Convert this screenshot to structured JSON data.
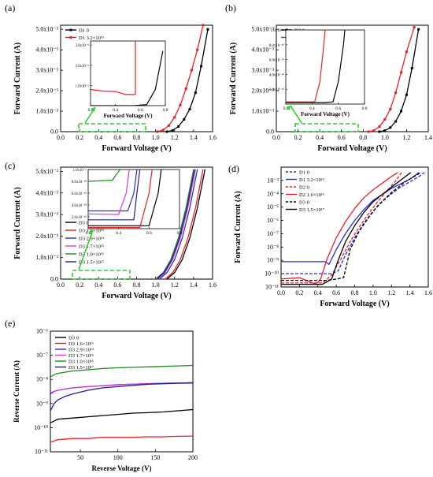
{
  "chart_data": [
    {
      "panel": "(a)",
      "type": "line",
      "xlabel": "Forward Voltage (V)",
      "ylabel": "Forward Current (A)",
      "xlim": [
        0,
        1.6
      ],
      "ylim": [
        0,
        0.0052
      ],
      "xticks": [
        "0.0",
        "0.2",
        "0.4",
        "0.6",
        "0.8",
        "1.0",
        "1.2",
        "1.4",
        "1.6"
      ],
      "yticks": [
        "0.0",
        "1.0x10⁻³",
        "2.0x10⁻³",
        "3.0x10⁻³",
        "4.0x10⁻³",
        "5.0x10⁻³"
      ],
      "legend_position": "top-left",
      "series": [
        {
          "name": "D1 0",
          "color": "#000000",
          "dash": false,
          "marker": "square",
          "x": [
            1.12,
            1.18,
            1.24,
            1.3,
            1.36,
            1.42,
            1.48,
            1.55
          ],
          "y": [
            0,
            6e-05,
            0.00025,
            0.0006,
            0.0011,
            0.0019,
            0.0032,
            0.005
          ]
        },
        {
          "name": "D1 3.2×10¹⁵",
          "color": "#e8202a",
          "dash": false,
          "marker": "circle",
          "x": [
            1.02,
            1.08,
            1.14,
            1.2,
            1.26,
            1.32,
            1.38,
            1.44,
            1.5
          ],
          "y": [
            0,
            8e-05,
            0.0003,
            0.0007,
            0.0013,
            0.0021,
            0.003,
            0.004,
            0.0052
          ]
        }
      ],
      "inset": {
        "xlabel": "Forward Voltage (V)",
        "xlim": [
          0.2,
          0.8
        ],
        "ylim": [
          0,
          3.2e-09
        ],
        "xticks": [
          "0.2",
          "0.4",
          "0.6",
          "0.8"
        ],
        "yticks": [
          "1.0x10⁻⁹",
          "2.0x10⁻⁹",
          "3.0x10⁻⁹"
        ],
        "series": [
          {
            "color": "#000000",
            "x": [
              0.2,
              0.55,
              0.65,
              0.72,
              0.78
            ],
            "y": [
              0,
              0,
              5e-11,
              8e-10,
              2.7e-09
            ]
          },
          {
            "color": "#e8202a",
            "x": [
              0.2,
              0.3,
              0.4,
              0.48,
              0.56,
              0.56
            ],
            "y": [
              8e-10,
              7.2e-10,
              7e-10,
              5.5e-10,
              5.5e-10,
              3.2e-09
            ]
          }
        ]
      }
    },
    {
      "panel": "(b)",
      "type": "line",
      "xlabel": "Forward Voltage (V)",
      "ylabel": "Forward Current (A)",
      "xlim": [
        0,
        1.4
      ],
      "ylim": [
        0,
        0.0052
      ],
      "xticks": [
        "0.0",
        "0.2",
        "0.4",
        "0.6",
        "0.8",
        "1.0",
        "1.2",
        "1.4"
      ],
      "yticks": [
        "0.0",
        "1.0x10⁻³",
        "2.0x10⁻³",
        "3.0x10⁻³",
        "4.0x10⁻³",
        "5.0x10⁻³"
      ],
      "legend_position": "top-left",
      "series": [
        {
          "name": "D2 0",
          "color": "#000000",
          "dash": false,
          "marker": "square",
          "x": [
            0.95,
            1.0,
            1.05,
            1.1,
            1.15,
            1.2,
            1.25,
            1.31
          ],
          "y": [
            0,
            5e-05,
            0.0002,
            0.0005,
            0.001,
            0.0018,
            0.0031,
            0.005
          ]
        },
        {
          "name": "D2 1.6×10¹⁶",
          "color": "#e8202a",
          "dash": false,
          "marker": "circle",
          "x": [
            0.85,
            0.9,
            0.95,
            1.0,
            1.05,
            1.1,
            1.15,
            1.2,
            1.27
          ],
          "y": [
            0,
            6e-05,
            0.00025,
            0.0006,
            0.0011,
            0.0019,
            0.0029,
            0.0039,
            0.0051
          ]
        }
      ],
      "inset": {
        "xlabel": "Forward Voltage (V)",
        "xlim": [
          0.2,
          0.8
        ],
        "ylim": [
          0,
          1e-09
        ],
        "xticks": [
          "0.2",
          "0.4",
          "0.6",
          "0.8"
        ],
        "yticks": [
          "2.0x10⁻¹⁰",
          "4.0x10⁻¹⁰",
          "6.0x10⁻¹⁰",
          "8.0x10⁻¹⁰",
          "1.0x10⁻⁹"
        ],
        "series": [
          {
            "color": "#000000",
            "x": [
              0.2,
              0.5,
              0.56,
              0.6,
              0.64,
              0.65
            ],
            "y": [
              2e-11,
              2e-11,
              3e-11,
              3e-10,
              8e-10,
              1e-09
            ]
          },
          {
            "color": "#e8202a",
            "x": [
              0.2,
              0.3,
              0.42,
              0.46,
              0.49,
              0.5
            ],
            "y": [
              3e-11,
              3e-11,
              3e-11,
              3e-10,
              8e-10,
              1e-09
            ]
          }
        ]
      }
    },
    {
      "panel": "(c)",
      "type": "line",
      "xlabel": "Forward Voltage (V)",
      "ylabel": "Forward Current (A)",
      "xlim": [
        0,
        1.6
      ],
      "ylim": [
        0,
        0.0052
      ],
      "xticks": [
        "0.0",
        "0.2",
        "0.4",
        "0.6",
        "0.8",
        "1.0",
        "1.2",
        "1.4",
        "1.6"
      ],
      "yticks": [
        "0.0",
        "1.0x10⁻³",
        "2.0x10⁻³",
        "3.0x10⁻³",
        "4.0x10⁻³",
        "5.0x10⁻³"
      ],
      "legend_position": "bottom-left",
      "series": [
        {
          "name": "D3 0",
          "color": "#000000",
          "x": [
            1.12,
            1.2,
            1.28,
            1.36,
            1.44,
            1.52
          ],
          "y": [
            0,
            0.0003,
            0.0009,
            0.0019,
            0.0033,
            0.0051
          ]
        },
        {
          "name": "D3 1.6×10¹³",
          "color": "#e8202a",
          "x": [
            1.1,
            1.18,
            1.26,
            1.34,
            1.42,
            1.5
          ],
          "y": [
            0,
            0.0003,
            0.0009,
            0.0019,
            0.0033,
            0.0051
          ]
        },
        {
          "name": "D3 2.9×10¹⁴",
          "color": "#2a2ad6",
          "x": [
            1.04,
            1.12,
            1.2,
            1.28,
            1.36,
            1.44
          ],
          "y": [
            0,
            0.0003,
            0.0009,
            0.0019,
            0.0033,
            0.0051
          ]
        },
        {
          "name": "D3 1.7×10¹⁵",
          "color": "#d63ad6",
          "x": [
            1.02,
            1.1,
            1.18,
            1.26,
            1.34,
            1.42
          ],
          "y": [
            0,
            0.0003,
            0.0009,
            0.0019,
            0.0033,
            0.0051
          ]
        },
        {
          "name": "D3 1.0×10¹⁶",
          "color": "#1f8a1f",
          "x": [
            1.0,
            1.08,
            1.16,
            1.24,
            1.32,
            1.4
          ],
          "y": [
            0,
            0.0003,
            0.0009,
            0.0019,
            0.0033,
            0.0051
          ]
        },
        {
          "name": "D3 1.5×10¹⁷",
          "color": "#1f1f8a",
          "x": [
            1.01,
            1.09,
            1.17,
            1.25,
            1.33,
            1.41
          ],
          "y": [
            0,
            0.0003,
            0.0009,
            0.0019,
            0.0033,
            0.0051
          ]
        }
      ],
      "inset": {
        "xlim": [
          0.2,
          0.8
        ],
        "ylim": [
          0,
          1e-09
        ],
        "xticks": [
          "0.2",
          "0.4",
          "0.6",
          "0.8"
        ],
        "yticks": [
          "2.0x10⁻¹⁰",
          "4.0x10⁻¹⁰",
          "6.0x10⁻¹⁰",
          "8.0x10⁻¹⁰",
          "1.0x10⁻⁹"
        ],
        "series": [
          {
            "color": "#000000",
            "x": [
              0.2,
              0.6,
              0.66,
              0.68
            ],
            "y": [
              5e-11,
              5e-11,
              6e-10,
              1e-09
            ]
          },
          {
            "color": "#e8202a",
            "x": [
              0.2,
              0.54,
              0.6,
              0.62
            ],
            "y": [
              2e-11,
              2e-11,
              6e-10,
              1e-09
            ]
          },
          {
            "color": "#2a2ad6",
            "x": [
              0.2,
              0.46,
              0.5,
              0.52
            ],
            "y": [
              3e-10,
              3e-10,
              6e-10,
              1e-09
            ]
          },
          {
            "color": "#d63ad6",
            "x": [
              0.2,
              0.4,
              0.45,
              0.47
            ],
            "y": [
              2.5e-10,
              2.4e-10,
              6e-10,
              1e-09
            ]
          },
          {
            "color": "#1f8a1f",
            "x": [
              0.2,
              0.36,
              0.38,
              0.41
            ],
            "y": [
              8e-10,
              8.2e-10,
              9e-10,
              1e-09
            ]
          },
          {
            "color": "#1f1f8a",
            "x": [
              0.2,
              0.5,
              0.52,
              0.54
            ],
            "y": [
              1.5e-10,
              1.5e-10,
              6e-10,
              1e-09
            ]
          }
        ]
      }
    },
    {
      "panel": "(d)",
      "type": "line",
      "yscale": "log",
      "xlabel": "Forward Voltage (V)",
      "ylabel": "Forward Current (A)",
      "xlim": [
        0,
        1.6
      ],
      "ylim_exp": [
        -11,
        -2
      ],
      "xticks": [
        "0.0",
        "0.2",
        "0.4",
        "0.6",
        "0.8",
        "1.0",
        "1.2",
        "1.4",
        "1.6"
      ],
      "yticks": [
        "10⁻¹¹",
        "10⁻¹⁰",
        "10⁻⁹",
        "10⁻⁸",
        "10⁻⁷",
        "10⁻⁶",
        "10⁻⁵",
        "10⁻⁴",
        "10⁻³"
      ],
      "legend_position": "top-left",
      "series": [
        {
          "name": "D1 0",
          "color": "#2a2ad6",
          "dash": true,
          "x": [
            0,
            0.55,
            0.62,
            0.7,
            0.8,
            0.9,
            1.0,
            1.1,
            1.2,
            1.3,
            1.4,
            1.5,
            1.56
          ],
          "y_exp": [
            -10,
            -10,
            -9.8,
            -8.6,
            -7.3,
            -6.2,
            -5.3,
            -4.6,
            -4,
            -3.5,
            -3.1,
            -2.7,
            -2.4
          ]
        },
        {
          "name": "D1 3.2×10¹⁵",
          "color": "#2a2ad6",
          "dash": false,
          "x": [
            0,
            0.48,
            0.52,
            0.6,
            0.7,
            0.8,
            0.9,
            1.0,
            1.2,
            1.4,
            1.5
          ],
          "y_exp": [
            -9.1,
            -9.1,
            -9.3,
            -8.2,
            -7,
            -6,
            -5.2,
            -4.5,
            -3.6,
            -2.9,
            -2.4
          ]
        },
        {
          "name": "D2 0",
          "color": "#e8202a",
          "dash": true,
          "x": [
            0,
            0.45,
            0.55,
            0.65,
            0.75,
            0.85,
            0.95,
            1.05,
            1.15,
            1.25,
            1.31
          ],
          "y_exp": [
            -10.7,
            -10.7,
            -10.1,
            -8.9,
            -7.6,
            -6.5,
            -5.5,
            -4.6,
            -3.8,
            -3,
            -2.4
          ]
        },
        {
          "name": "D2 1.6×10¹⁶",
          "color": "#e8202a",
          "dash": false,
          "x": [
            0,
            0.2,
            0.38,
            0.43,
            0.5,
            0.6,
            0.7,
            0.8,
            0.9,
            1.0,
            1.1,
            1.2,
            1.27
          ],
          "y_exp": [
            -10.4,
            -10.3,
            -10.8,
            -10.4,
            -8.9,
            -7.3,
            -6.1,
            -5.1,
            -4.3,
            -3.7,
            -3.2,
            -2.7,
            -2.4
          ]
        },
        {
          "name": "D3 0",
          "color": "#000000",
          "dash": true,
          "x": [
            0,
            0.5,
            0.6,
            0.68,
            0.75,
            0.85,
            0.95,
            1.05,
            1.2,
            1.35,
            1.52
          ],
          "y_exp": [
            -10.5,
            -10.5,
            -10.4,
            -10.3,
            -8.2,
            -6.8,
            -5.8,
            -4.9,
            -3.9,
            -3.1,
            -2.4
          ]
        },
        {
          "name": "D3 1.5×10¹⁷",
          "color": "#000000",
          "dash": false,
          "x": [
            0,
            0.45,
            0.55,
            0.62,
            0.7,
            0.8,
            0.9,
            1.0,
            1.2,
            1.41
          ],
          "y_exp": [
            -10.8,
            -10.8,
            -10.4,
            -9,
            -7.6,
            -6.4,
            -5.4,
            -4.6,
            -3.5,
            -2.4
          ]
        }
      ]
    },
    {
      "panel": "(e)",
      "type": "line",
      "yscale": "log",
      "xlabel": "Reverse Voltage (V)",
      "ylabel": "Reverse Current (A)",
      "xlim": [
        10,
        200
      ],
      "ylim_exp": [
        -11,
        -6
      ],
      "xticks": [
        "50",
        "100",
        "150",
        "200"
      ],
      "xtick_values": [
        50,
        100,
        150,
        200
      ],
      "yticks": [
        "10⁻¹¹",
        "10⁻¹⁰",
        "10⁻⁹",
        "10⁻⁸",
        "10⁻⁷",
        "10⁻⁶"
      ],
      "legend_position": "top-left",
      "series": [
        {
          "name": "D3 0",
          "color": "#000000",
          "x": [
            10,
            20,
            40,
            60,
            80,
            100,
            120,
            140,
            160,
            180,
            200
          ],
          "y_exp": [
            -9.8,
            -9.65,
            -9.6,
            -9.55,
            -9.5,
            -9.45,
            -9.4,
            -9.38,
            -9.35,
            -9.3,
            -9.25
          ]
        },
        {
          "name": "D3 1.6×10¹³",
          "color": "#e8202a",
          "x": [
            10,
            20,
            40,
            60,
            80,
            100,
            120,
            140,
            160,
            180,
            200
          ],
          "y_exp": [
            -10.6,
            -10.5,
            -10.45,
            -10.45,
            -10.4,
            -10.4,
            -10.4,
            -10.38,
            -10.38,
            -10.36,
            -10.35
          ]
        },
        {
          "name": "D3 2.9×10¹⁴",
          "color": "#2a2ad6",
          "x": [
            10,
            15,
            20,
            30,
            40,
            60,
            80,
            100,
            120,
            140,
            160,
            180,
            200
          ],
          "y_exp": [
            -8.6,
            -8.5,
            -8.45,
            -8.4,
            -8.35,
            -8.3,
            -8.26,
            -8.22,
            -8.2,
            -8.18,
            -8.16,
            -8.15,
            -8.14
          ]
        },
        {
          "name": "D3 1.7×10¹⁵",
          "color": "#d63ad6",
          "x": [
            10,
            15,
            20,
            30,
            40,
            60,
            80,
            100,
            120,
            140,
            160,
            180,
            200
          ],
          "y_exp": [
            -8.55,
            -8.5,
            -8.45,
            -8.4,
            -8.35,
            -8.3,
            -8.26,
            -8.23,
            -8.2,
            -8.18,
            -8.16,
            -8.15,
            -8.13
          ]
        },
        {
          "name": "D3 1.0×10¹⁶",
          "color": "#1f8a1f",
          "x": [
            10,
            15,
            20,
            30,
            40,
            60,
            80,
            100,
            120,
            140,
            160,
            180,
            200
          ],
          "y_exp": [
            -7.9,
            -7.8,
            -7.75,
            -7.7,
            -7.65,
            -7.6,
            -7.55,
            -7.52,
            -7.5,
            -7.48,
            -7.46,
            -7.44,
            -7.42
          ]
        },
        {
          "name": "D3 1.5×10¹⁷",
          "color": "#1f1f8a",
          "x": [
            10,
            15,
            20,
            30,
            40,
            60,
            80,
            100,
            120,
            140,
            160,
            180,
            200
          ],
          "y_exp": [
            -9.3,
            -9.0,
            -8.85,
            -8.7,
            -8.6,
            -8.45,
            -8.35,
            -8.3,
            -8.25,
            -8.2,
            -8.18,
            -8.16,
            -8.15
          ]
        }
      ]
    }
  ]
}
